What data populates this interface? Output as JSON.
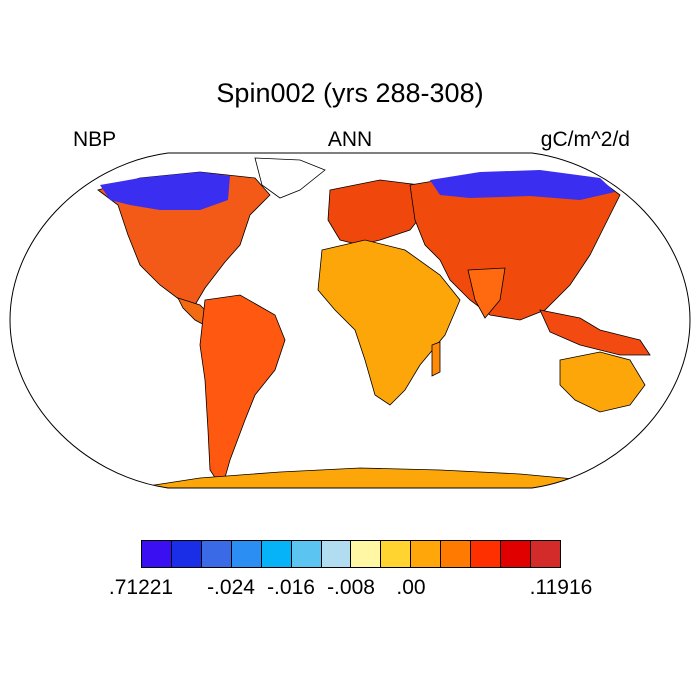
{
  "title": "Spin002 (yrs 288-308)",
  "left_label": "NBP",
  "center_label": "ANN",
  "right_label": "gC/m^2/d",
  "colorbar": {
    "colors": [
      "#3a10f2",
      "#1a2ee8",
      "#3a6ae6",
      "#2a8ef2",
      "#06b3f9",
      "#5cc4f0",
      "#b2ddf0",
      "#fff7a4",
      "#ffd431",
      "#fea60a",
      "#ff7a00",
      "#ff3000",
      "#e10000",
      "#d32a2a"
    ],
    "labels": [
      ".71221",
      "-.024",
      "-.016",
      "-.008",
      ".00",
      ".11916"
    ],
    "label_positions": [
      0,
      3,
      5,
      7,
      9,
      14
    ]
  },
  "map": {
    "projection": "Robinson",
    "variable": "NBP",
    "units": "gC/m^2/d"
  }
}
